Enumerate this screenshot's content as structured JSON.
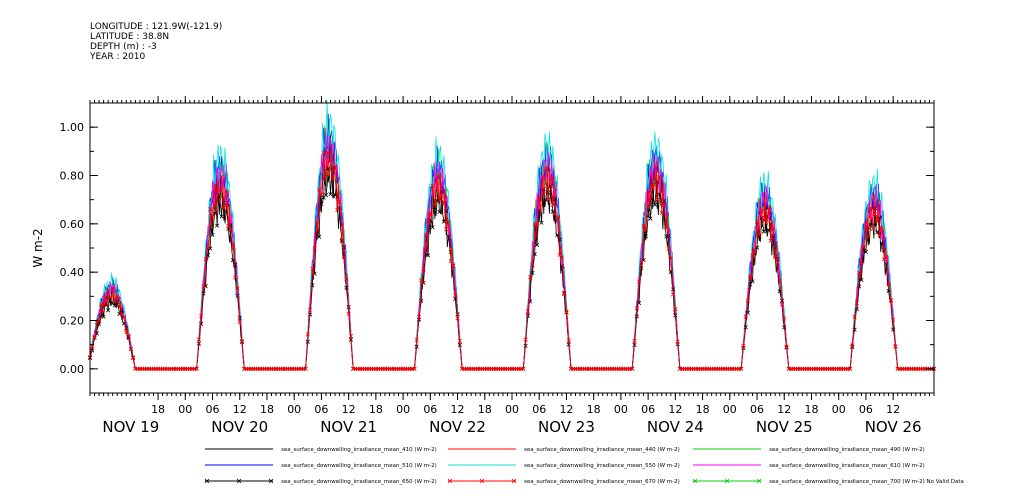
{
  "header": {
    "longitude": "LONGITUDE : 121.9W(-121.9)",
    "latitude": "LATITUDE : 38.8N",
    "depth": "DEPTH (m) : -3",
    "year": "YEAR : 2010"
  },
  "chart_data": {
    "type": "line",
    "title": "",
    "xlabel": "",
    "ylabel": "W m-2",
    "ylim": [
      -0.1,
      1.1
    ],
    "xlim_hours": [
      -9,
      177
    ],
    "yticks": [
      "0.00",
      "0.20",
      "0.40",
      "0.60",
      "0.80",
      "1.00"
    ],
    "ytick_values": [
      0,
      0.2,
      0.4,
      0.6,
      0.8,
      1.0
    ],
    "x_hour_labels": [
      "18",
      "00",
      "06",
      "12",
      "18",
      "00",
      "06",
      "12",
      "18",
      "00",
      "06",
      "12",
      "18",
      "00",
      "06",
      "12",
      "18",
      "00",
      "06",
      "12",
      "18",
      "00",
      "06",
      "12",
      "18",
      "00",
      "06",
      "12"
    ],
    "x_hour_positions": [
      6,
      12,
      18,
      24,
      30,
      36,
      42,
      48,
      54,
      60,
      66,
      72,
      78,
      84,
      90,
      96,
      102,
      108,
      114,
      120,
      126,
      132,
      138,
      144,
      150,
      156,
      162,
      168
    ],
    "x_day_labels": [
      "NOV 19",
      "NOV 20",
      "NOV 21",
      "NOV 22",
      "NOV 23",
      "NOV 24",
      "NOV 25",
      "NOV 26"
    ],
    "x_day_positions": [
      0,
      24,
      48,
      72,
      96,
      120,
      144,
      168
    ],
    "grid": false,
    "legend_placement": "bottom",
    "day_peaks": [
      0.32,
      0.78,
      0.9,
      0.78,
      0.82,
      0.82,
      0.68
    ],
    "series": [
      {
        "name": "sea_surface_downwelling_irradiance_mean_410 (W m-2)",
        "color": "#000000",
        "marker": "none",
        "scale": 0.92
      },
      {
        "name": "sea_surface_downwelling_irradiance_mean_440 (W m-2)",
        "color": "#ff0000",
        "marker": "none",
        "scale": 0.98
      },
      {
        "name": "sea_surface_downwelling_irradiance_mean_490 (W m-2)",
        "color": "#00cc00",
        "marker": "none",
        "scale": 1.04
      },
      {
        "name": "sea_surface_downwelling_irradiance_mean_510 (W m-2)",
        "color": "#0000ff",
        "marker": "none",
        "scale": 1.06
      },
      {
        "name": "sea_surface_downwelling_irradiance_mean_550 (W m-2)",
        "color": "#00e5e5",
        "marker": "none",
        "scale": 1.12
      },
      {
        "name": "sea_surface_downwelling_irradiance_mean_610 (W m-2)",
        "color": "#ff00ff",
        "marker": "none",
        "scale": 1.02
      },
      {
        "name": "sea_surface_downwelling_irradiance_mean_650 (W m-2)",
        "color": "#000000",
        "marker": "x",
        "scale": 0.88
      },
      {
        "name": "sea_surface_downwelling_irradiance_mean_670 (W m-2)",
        "color": "#ff0000",
        "marker": "x",
        "scale": 0.96
      },
      {
        "name": "sea_surface_downwelling_irradiance_mean_700 (W m-2) No Valid Data",
        "color": "#00cc00",
        "marker": "x",
        "scale": 0
      }
    ]
  }
}
